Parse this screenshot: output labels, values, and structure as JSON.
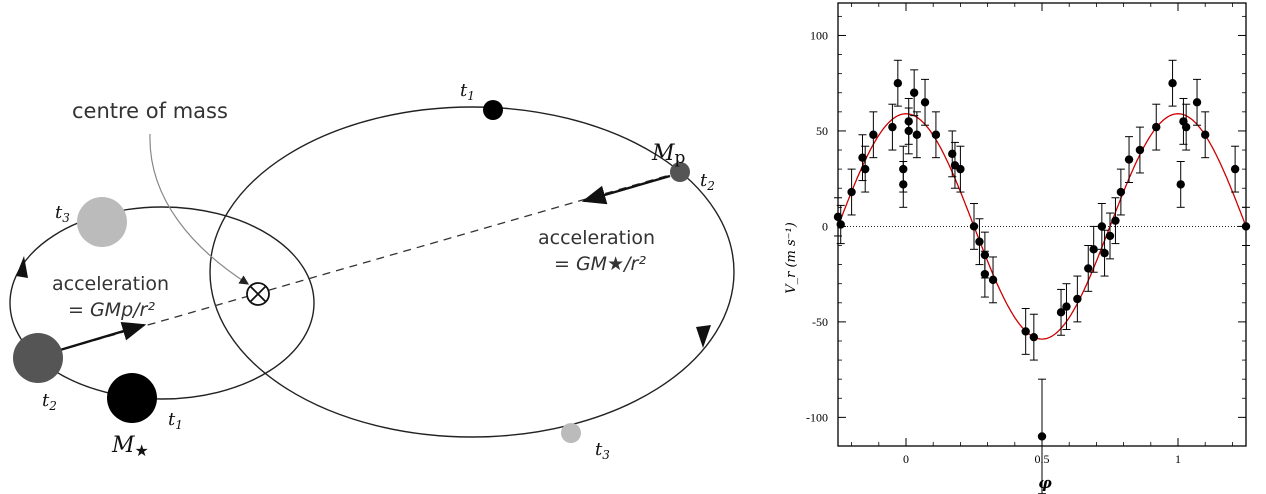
{
  "diagram": {
    "centre_of_mass_label": "centre of mass",
    "planet_label": "M",
    "planet_sub": "p",
    "star_label": "M",
    "star_symbol": "★",
    "accel_star_title": "acceleration",
    "accel_star_formula": "= GMp/r²",
    "accel_planet_title": "acceleration",
    "accel_planet_formula": "= GM★/r²",
    "time_labels": [
      "t1",
      "t2",
      "t3"
    ],
    "colors": {
      "planet_t1": "#000000",
      "planet_t2": "#555555",
      "planet_t3": "#bbbbbb",
      "star_t1": "#000000",
      "star_t2": "#555555",
      "star_t3": "#bbbbbb"
    }
  },
  "chart_data": {
    "type": "scatter",
    "xlabel": "φ",
    "ylabel": "V_r (m s⁻¹)",
    "xlim": [
      -0.25,
      1.25
    ],
    "ylim": [
      -115,
      117
    ],
    "xticks": [
      0,
      0.5,
      1
    ],
    "xtick_labels": [
      "0",
      "0.5",
      "1"
    ],
    "yticks": [
      -100,
      -50,
      0,
      50,
      100
    ],
    "ytick_labels": [
      "-100",
      "-50",
      "0",
      "50",
      "100"
    ],
    "fit_color": "#cc0000",
    "fit_amplitude": 59,
    "points": [
      {
        "x": -0.25,
        "y": 5,
        "e": 10
      },
      {
        "x": -0.24,
        "y": 1,
        "e": 10
      },
      {
        "x": -0.2,
        "y": 18,
        "e": 12
      },
      {
        "x": -0.16,
        "y": 36,
        "e": 12
      },
      {
        "x": -0.15,
        "y": 30,
        "e": 12
      },
      {
        "x": -0.12,
        "y": 48,
        "e": 12
      },
      {
        "x": -0.05,
        "y": 52,
        "e": 12
      },
      {
        "x": -0.03,
        "y": 75,
        "e": 12
      },
      {
        "x": -0.01,
        "y": 30,
        "e": 12
      },
      {
        "x": -0.01,
        "y": 22,
        "e": 12
      },
      {
        "x": 0.01,
        "y": 55,
        "e": 12
      },
      {
        "x": 0.01,
        "y": 50,
        "e": 12
      },
      {
        "x": 0.03,
        "y": 70,
        "e": 12
      },
      {
        "x": 0.04,
        "y": 48,
        "e": 12
      },
      {
        "x": 0.07,
        "y": 65,
        "e": 12
      },
      {
        "x": 0.11,
        "y": 48,
        "e": 12
      },
      {
        "x": 0.17,
        "y": 38,
        "e": 12
      },
      {
        "x": 0.18,
        "y": 32,
        "e": 12
      },
      {
        "x": 0.2,
        "y": 30,
        "e": 12
      },
      {
        "x": 0.25,
        "y": 0,
        "e": 12
      },
      {
        "x": 0.27,
        "y": -8,
        "e": 12
      },
      {
        "x": 0.29,
        "y": -15,
        "e": 12
      },
      {
        "x": 0.29,
        "y": -25,
        "e": 12
      },
      {
        "x": 0.32,
        "y": -28,
        "e": 12
      },
      {
        "x": 0.44,
        "y": -55,
        "e": 12
      },
      {
        "x": 0.47,
        "y": -58,
        "e": 12
      },
      {
        "x": 0.5,
        "y": -110,
        "e": 30
      },
      {
        "x": 0.57,
        "y": -45,
        "e": 12
      },
      {
        "x": 0.59,
        "y": -42,
        "e": 12
      },
      {
        "x": 0.63,
        "y": -38,
        "e": 12
      },
      {
        "x": 0.67,
        "y": -22,
        "e": 12
      },
      {
        "x": 0.69,
        "y": -12,
        "e": 12
      },
      {
        "x": 0.72,
        "y": 0,
        "e": 12
      },
      {
        "x": 0.73,
        "y": -14,
        "e": 12
      },
      {
        "x": 0.75,
        "y": -5,
        "e": 12
      },
      {
        "x": 0.77,
        "y": 3,
        "e": 12
      },
      {
        "x": 0.79,
        "y": 18,
        "e": 12
      },
      {
        "x": 0.82,
        "y": 35,
        "e": 12
      },
      {
        "x": 0.86,
        "y": 40,
        "e": 12
      },
      {
        "x": 0.92,
        "y": 52,
        "e": 12
      },
      {
        "x": 0.98,
        "y": 75,
        "e": 12
      },
      {
        "x": 1.01,
        "y": 22,
        "e": 12
      },
      {
        "x": 1.02,
        "y": 55,
        "e": 12
      },
      {
        "x": 1.03,
        "y": 52,
        "e": 12
      },
      {
        "x": 1.07,
        "y": 65,
        "e": 12
      },
      {
        "x": 1.1,
        "y": 48,
        "e": 12
      },
      {
        "x": 1.21,
        "y": 30,
        "e": 12
      },
      {
        "x": 1.25,
        "y": 0,
        "e": 10
      }
    ]
  }
}
